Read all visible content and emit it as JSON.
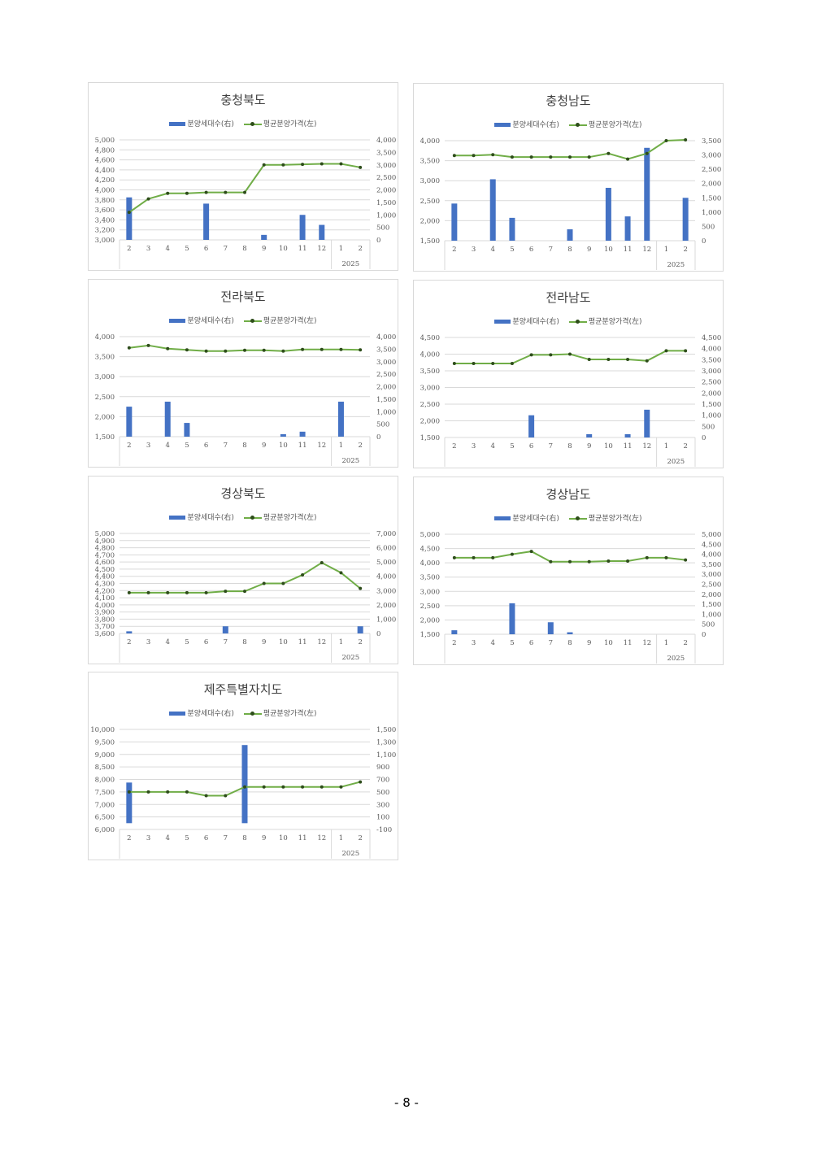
{
  "legend": {
    "bar_label": "분양세대수(右)",
    "line_label": "평균분양가격(左)"
  },
  "colors": {
    "bar": "#4472c4",
    "line": "#70ad47",
    "marker": "#2e4d1b",
    "grid": "#d9d9d9"
  },
  "page_number": "- 8 -",
  "chart_data": [
    {
      "type": "bar+line",
      "title": "충청북도",
      "categories": [
        "2",
        "3",
        "4",
        "5",
        "6",
        "7",
        "8",
        "9",
        "10",
        "11",
        "12",
        "1",
        "2"
      ],
      "year_label": "2025",
      "left_axis": {
        "min": 3000,
        "max": 5000,
        "ticks": [
          "5,000",
          "4,800",
          "4,600",
          "4,400",
          "4,200",
          "4,000",
          "3,800",
          "3,600",
          "3,400",
          "3,200",
          "3,000"
        ]
      },
      "right_axis": {
        "min": 0,
        "max": 4000,
        "ticks": [
          "4,000",
          "3,500",
          "3,000",
          "2,500",
          "2,000",
          "1,500",
          "1,000",
          "500",
          "0"
        ]
      },
      "series": [
        {
          "name": "분양세대수(右)",
          "type": "bar",
          "axis": "right",
          "values": [
            1700,
            0,
            0,
            0,
            1450,
            0,
            0,
            200,
            0,
            1000,
            600,
            0,
            0
          ]
        },
        {
          "name": "평균분양가격(左)",
          "type": "line",
          "axis": "left",
          "values": [
            3550,
            3820,
            3930,
            3930,
            3950,
            3950,
            3950,
            4500,
            4500,
            4510,
            4520,
            4520,
            4450
          ]
        }
      ]
    },
    {
      "type": "bar+line",
      "title": "충청남도",
      "categories": [
        "2",
        "3",
        "4",
        "5",
        "6",
        "7",
        "8",
        "9",
        "10",
        "11",
        "12",
        "1",
        "2"
      ],
      "year_label": "2025",
      "left_axis": {
        "min": 1500,
        "max": 4000,
        "ticks": [
          "4,000",
          "3,500",
          "3,000",
          "2,500",
          "2,000",
          "1,500"
        ]
      },
      "right_axis": {
        "min": 0,
        "max": 3500,
        "ticks": [
          "3,500",
          "3,000",
          "2,500",
          "2,000",
          "1,500",
          "1,000",
          "500",
          "0"
        ]
      },
      "series": [
        {
          "name": "분양세대수(右)",
          "type": "bar",
          "axis": "right",
          "values": [
            1300,
            0,
            2150,
            800,
            0,
            0,
            400,
            0,
            1850,
            850,
            3250,
            0,
            1500
          ]
        },
        {
          "name": "평균분양가격(左)",
          "type": "line",
          "axis": "left",
          "values": [
            3630,
            3630,
            3650,
            3590,
            3590,
            3590,
            3590,
            3590,
            3680,
            3540,
            3680,
            4000,
            4020
          ]
        }
      ]
    },
    {
      "type": "bar+line",
      "title": "전라북도",
      "categories": [
        "2",
        "3",
        "4",
        "5",
        "6",
        "7",
        "8",
        "9",
        "10",
        "11",
        "12",
        "1",
        "2"
      ],
      "year_label": "2025",
      "left_axis": {
        "min": 1500,
        "max": 4000,
        "ticks": [
          "4,000",
          "3,500",
          "3,000",
          "2,500",
          "2,000",
          "1,500"
        ]
      },
      "right_axis": {
        "min": 0,
        "max": 4000,
        "ticks": [
          "4,000",
          "3,500",
          "3,000",
          "2,500",
          "2,000",
          "1,500",
          "1,000",
          "500",
          "0"
        ]
      },
      "series": [
        {
          "name": "분양세대수(右)",
          "type": "bar",
          "axis": "right",
          "values": [
            1200,
            0,
            1400,
            550,
            0,
            0,
            0,
            0,
            100,
            200,
            0,
            1400,
            0
          ]
        },
        {
          "name": "평균분양가격(左)",
          "type": "line",
          "axis": "left",
          "values": [
            3720,
            3780,
            3700,
            3670,
            3640,
            3640,
            3660,
            3660,
            3640,
            3680,
            3680,
            3680,
            3670
          ]
        }
      ]
    },
    {
      "type": "bar+line",
      "title": "전라남도",
      "categories": [
        "2",
        "3",
        "4",
        "5",
        "6",
        "7",
        "8",
        "9",
        "10",
        "11",
        "12",
        "1",
        "2"
      ],
      "year_label": "2025",
      "left_axis": {
        "min": 1500,
        "max": 4500,
        "ticks": [
          "4,500",
          "4,000",
          "3,500",
          "3,000",
          "2,500",
          "2,000",
          "1,500"
        ]
      },
      "right_axis": {
        "min": 0,
        "max": 4500,
        "ticks": [
          "4,500",
          "4,000",
          "3,500",
          "3,000",
          "2,500",
          "2,000",
          "1,500",
          "1,000",
          "500",
          "0"
        ]
      },
      "series": [
        {
          "name": "분양세대수(右)",
          "type": "bar",
          "axis": "right",
          "values": [
            0,
            0,
            0,
            0,
            1000,
            0,
            0,
            150,
            0,
            150,
            1250,
            0,
            0
          ]
        },
        {
          "name": "평균분양가격(左)",
          "type": "line",
          "axis": "left",
          "values": [
            3720,
            3720,
            3720,
            3720,
            3980,
            3980,
            4000,
            3840,
            3840,
            3840,
            3800,
            4100,
            4100
          ]
        }
      ]
    },
    {
      "type": "bar+line",
      "title": "경상북도",
      "categories": [
        "2",
        "3",
        "4",
        "5",
        "6",
        "7",
        "8",
        "9",
        "10",
        "11",
        "12",
        "1",
        "2"
      ],
      "year_label": "2025",
      "left_axis": {
        "min": 3600,
        "max": 5000,
        "ticks": [
          "5,000",
          "4,900",
          "4,800",
          "4,700",
          "4,600",
          "4,500",
          "4,400",
          "4,300",
          "4,200",
          "4,100",
          "4,000",
          "3,900",
          "3,800",
          "3,700",
          "3,600"
        ]
      },
      "right_axis": {
        "min": 0,
        "max": 7000,
        "ticks": [
          "7,000",
          "6,000",
          "5,000",
          "4,000",
          "3,000",
          "2,000",
          "1,000",
          "0"
        ]
      },
      "series": [
        {
          "name": "분양세대수(右)",
          "type": "bar",
          "axis": "right",
          "values": [
            150,
            0,
            0,
            0,
            0,
            500,
            0,
            0,
            0,
            0,
            0,
            0,
            500
          ]
        },
        {
          "name": "평균분양가격(左)",
          "type": "line",
          "axis": "left",
          "values": [
            4170,
            4170,
            4170,
            4170,
            4170,
            4190,
            4190,
            4300,
            4300,
            4420,
            4590,
            4450,
            4230
          ]
        }
      ]
    },
    {
      "type": "bar+line",
      "title": "경상남도",
      "categories": [
        "2",
        "3",
        "4",
        "5",
        "6",
        "7",
        "8",
        "9",
        "10",
        "11",
        "12",
        "1",
        "2"
      ],
      "year_label": "2025",
      "left_axis": {
        "min": 1500,
        "max": 5000,
        "ticks": [
          "5,000",
          "4,500",
          "4,000",
          "3,500",
          "3,000",
          "2,500",
          "2,000",
          "1,500"
        ]
      },
      "right_axis": {
        "min": 0,
        "max": 5000,
        "ticks": [
          "5,000",
          "4,500",
          "4,000",
          "3,500",
          "3,000",
          "2,500",
          "2,000",
          "1,500",
          "1,000",
          "500",
          "0"
        ]
      },
      "series": [
        {
          "name": "분양세대수(右)",
          "type": "bar",
          "axis": "right",
          "values": [
            200,
            0,
            0,
            1550,
            0,
            600,
            100,
            0,
            0,
            0,
            0,
            0,
            0
          ]
        },
        {
          "name": "평균분양가격(左)",
          "type": "line",
          "axis": "left",
          "values": [
            4180,
            4180,
            4180,
            4300,
            4400,
            4040,
            4040,
            4040,
            4060,
            4060,
            4180,
            4180,
            4100
          ]
        }
      ]
    },
    {
      "type": "bar+line",
      "title": "제주특별자치도",
      "categories": [
        "2",
        "3",
        "4",
        "5",
        "6",
        "7",
        "8",
        "9",
        "10",
        "11",
        "12",
        "1",
        "2"
      ],
      "year_label": "2025",
      "left_axis": {
        "min": 6000,
        "max": 10000,
        "ticks": [
          "10,000",
          "9,500",
          "9,000",
          "8,500",
          "8,000",
          "7,500",
          "7,000",
          "6,500",
          "6,000"
        ]
      },
      "right_axis": {
        "min": -100,
        "max": 1500,
        "ticks": [
          "1,500",
          "1,300",
          "1,100",
          "900",
          "700",
          "500",
          "300",
          "100",
          "-100"
        ]
      },
      "series": [
        {
          "name": "분양세대수(右)",
          "type": "bar",
          "axis": "right",
          "values": [
            650,
            0,
            0,
            0,
            0,
            0,
            1250,
            0,
            0,
            0,
            0,
            0,
            0
          ]
        },
        {
          "name": "평균분양가격(左)",
          "type": "line",
          "axis": "left",
          "values": [
            7500,
            7500,
            7500,
            7500,
            7350,
            7350,
            7700,
            7700,
            7700,
            7700,
            7700,
            7700,
            7900
          ]
        }
      ]
    }
  ]
}
